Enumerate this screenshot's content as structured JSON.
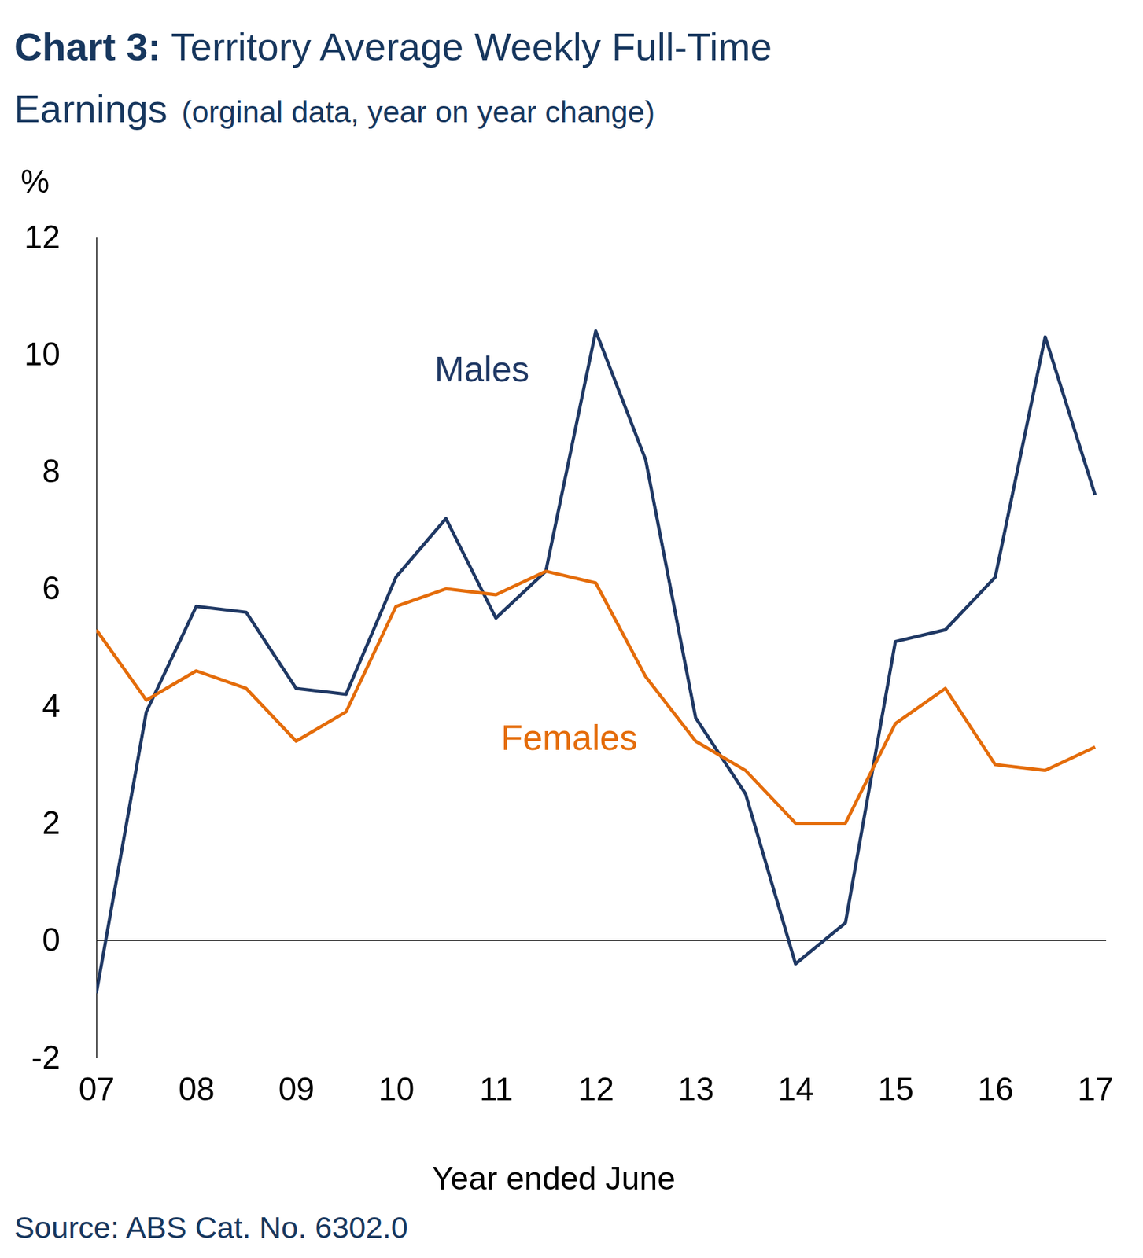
{
  "chart_data": {
    "type": "line",
    "title": "Chart 3: Territory Average Weekly Full-Time Earnings",
    "subtitle": "(orginal data, year on year change)",
    "y_label": "%",
    "x_label": "Year ended June",
    "source": "Source: ABS Cat. No. 6302.0",
    "categories": [
      "07",
      null,
      "08",
      null,
      "09",
      null,
      "10",
      null,
      "11",
      null,
      "12",
      null,
      "13",
      null,
      "14",
      null,
      "15",
      null,
      "16",
      null,
      "17"
    ],
    "series": [
      {
        "name": "Males",
        "color": "#1f3864",
        "values": [
          -0.9,
          3.9,
          5.7,
          5.6,
          4.3,
          4.2,
          6.2,
          7.2,
          5.5,
          6.3,
          10.4,
          8.2,
          3.8,
          2.5,
          -0.4,
          0.3,
          5.1,
          5.3,
          6.2,
          10.3,
          7.6
        ]
      },
      {
        "name": "Females",
        "color": "#e46c0a",
        "values": [
          5.3,
          4.1,
          4.6,
          4.3,
          3.4,
          3.9,
          5.7,
          6.0,
          5.9,
          6.3,
          6.1,
          4.5,
          3.4,
          2.9,
          2.0,
          2.0,
          3.7,
          4.3,
          3.0,
          2.9,
          3.3
        ]
      }
    ],
    "ylim": [
      -2,
      12
    ],
    "yticks": [
      -2,
      0,
      2,
      4,
      6,
      8,
      10,
      12
    ],
    "grid": false,
    "tick_labels": true
  }
}
